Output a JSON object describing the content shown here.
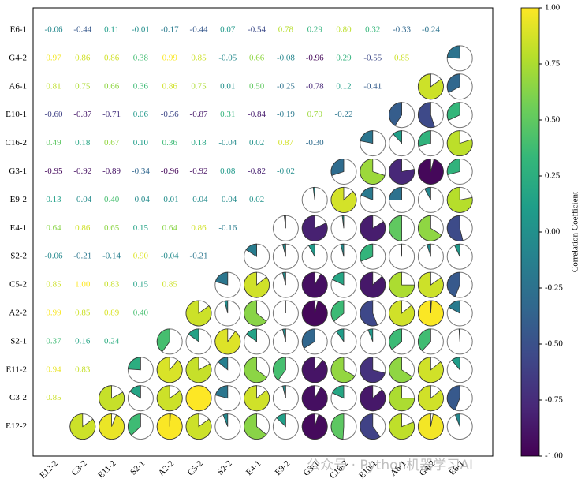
{
  "chart_data": {
    "type": "correlation-matrix",
    "colormap": "viridis",
    "rows": [
      "E6-1",
      "G4-2",
      "A6-1",
      "E10-1",
      "C16-2",
      "G3-1",
      "E9-2",
      "E4-1",
      "S2-2",
      "C5-2",
      "A2-2",
      "S2-1",
      "E11-2",
      "C3-2",
      "E12-2"
    ],
    "columns": [
      "E12-2",
      "C3-2",
      "E11-2",
      "S2-1",
      "A2-2",
      "C5-2",
      "S2-2",
      "E4-1",
      "E9-2",
      "G3-1",
      "C16-2",
      "E10-1",
      "A6-1",
      "G4-2",
      "E6-1"
    ],
    "values": [
      [
        -0.06,
        -0.44,
        0.11,
        -0.01,
        -0.17,
        -0.44,
        0.07,
        -0.54,
        0.78,
        0.29,
        0.8,
        0.32,
        -0.33,
        -0.24
      ],
      [
        0.97,
        0.86,
        0.86,
        0.38,
        0.99,
        0.85,
        -0.05,
        0.66,
        -0.08,
        -0.96,
        0.29,
        -0.55,
        0.85
      ],
      [
        0.81,
        0.75,
        0.66,
        0.36,
        0.86,
        0.75,
        0.01,
        0.5,
        -0.25,
        -0.78,
        0.12,
        -0.41
      ],
      [
        -0.6,
        -0.87,
        -0.71,
        0.06,
        -0.56,
        -0.87,
        0.31,
        -0.84,
        -0.19,
        0.7,
        -0.22
      ],
      [
        0.49,
        0.18,
        0.67,
        0.1,
        0.36,
        0.18,
        -0.04,
        0.02,
        0.87,
        -0.3
      ],
      [
        -0.95,
        -0.92,
        -0.89,
        -0.34,
        -0.96,
        -0.92,
        0.08,
        -0.82,
        -0.02
      ],
      [
        0.13,
        -0.04,
        0.4,
        -0.04,
        -0.01,
        -0.04,
        -0.04,
        0.02
      ],
      [
        0.64,
        0.86,
        0.65,
        0.15,
        0.64,
        0.86,
        -0.16
      ],
      [
        -0.06,
        -0.21,
        -0.14,
        0.9,
        -0.04,
        -0.21
      ],
      [
        0.85,
        1,
        0.83,
        0.15,
        0.85
      ],
      [
        0.99,
        0.85,
        0.89,
        0.4
      ],
      [
        0.37,
        0.16,
        0.24
      ],
      [
        0.94,
        0.83
      ],
      [
        0.85
      ],
      []
    ],
    "value_labels": [
      [
        "-0.06",
        "-0.44",
        "0.11",
        "-0.01",
        "-0.17",
        "-0.44",
        "0.07",
        "-0.54",
        "0.78",
        "0.29",
        "0.80",
        "0.32",
        "-0.33",
        "-0.24"
      ],
      [
        "0.97",
        "0.86",
        "0.86",
        "0.38",
        "0.99",
        "0.85",
        "-0.05",
        "0.66",
        "-0.08",
        "-0.96",
        "0.29",
        "-0.55",
        "0.85"
      ],
      [
        "0.81",
        "0.75",
        "0.66",
        "0.36",
        "0.86",
        "0.75",
        "0.01",
        "0.50",
        "-0.25",
        "-0.78",
        "0.12",
        "-0.41"
      ],
      [
        "-0.60",
        "-0.87",
        "-0.71",
        "0.06",
        "-0.56",
        "-0.87",
        "0.31",
        "-0.84",
        "-0.19",
        "0.70",
        "-0.22"
      ],
      [
        "0.49",
        "0.18",
        "0.67",
        "0.10",
        "0.36",
        "0.18",
        "-0.04",
        "0.02",
        "0.87",
        "-0.30"
      ],
      [
        "-0.95",
        "-0.92",
        "-0.89",
        "-0.34",
        "-0.96",
        "-0.92",
        "0.08",
        "-0.82",
        "-0.02"
      ],
      [
        "0.13",
        "-0.04",
        "0.40",
        "-0.04",
        "-0.01",
        "-0.04",
        "-0.04",
        "0.02"
      ],
      [
        "0.64",
        "0.86",
        "0.65",
        "0.15",
        "0.64",
        "0.86",
        "-0.16"
      ],
      [
        "-0.06",
        "-0.21",
        "-0.14",
        "0.90",
        "-0.04",
        "-0.21"
      ],
      [
        "0.85",
        "1.00",
        "0.83",
        "0.15",
        "0.85"
      ],
      [
        "0.99",
        "0.85",
        "0.89",
        "0.40"
      ],
      [
        "0.37",
        "0.16",
        "0.24"
      ],
      [
        "0.94",
        "0.83"
      ],
      [
        "0.85"
      ],
      []
    ],
    "colorbar": {
      "label": "Correlation Coefficient",
      "lim": [
        -1,
        1
      ],
      "ticks": [
        {
          "value": -1,
          "label": "-1.00"
        },
        {
          "value": -0.75,
          "label": "-0.75"
        },
        {
          "value": -0.5,
          "label": "-0.50"
        },
        {
          "value": -0.25,
          "label": "-0.25"
        },
        {
          "value": 0,
          "label": "0.00"
        },
        {
          "value": 0.25,
          "label": "0.25"
        },
        {
          "value": 0.5,
          "label": "0.50"
        },
        {
          "value": 0.75,
          "label": "0.75"
        },
        {
          "value": 1,
          "label": "1.00"
        }
      ]
    },
    "watermark": "公众号 · Python机器学习AI"
  }
}
